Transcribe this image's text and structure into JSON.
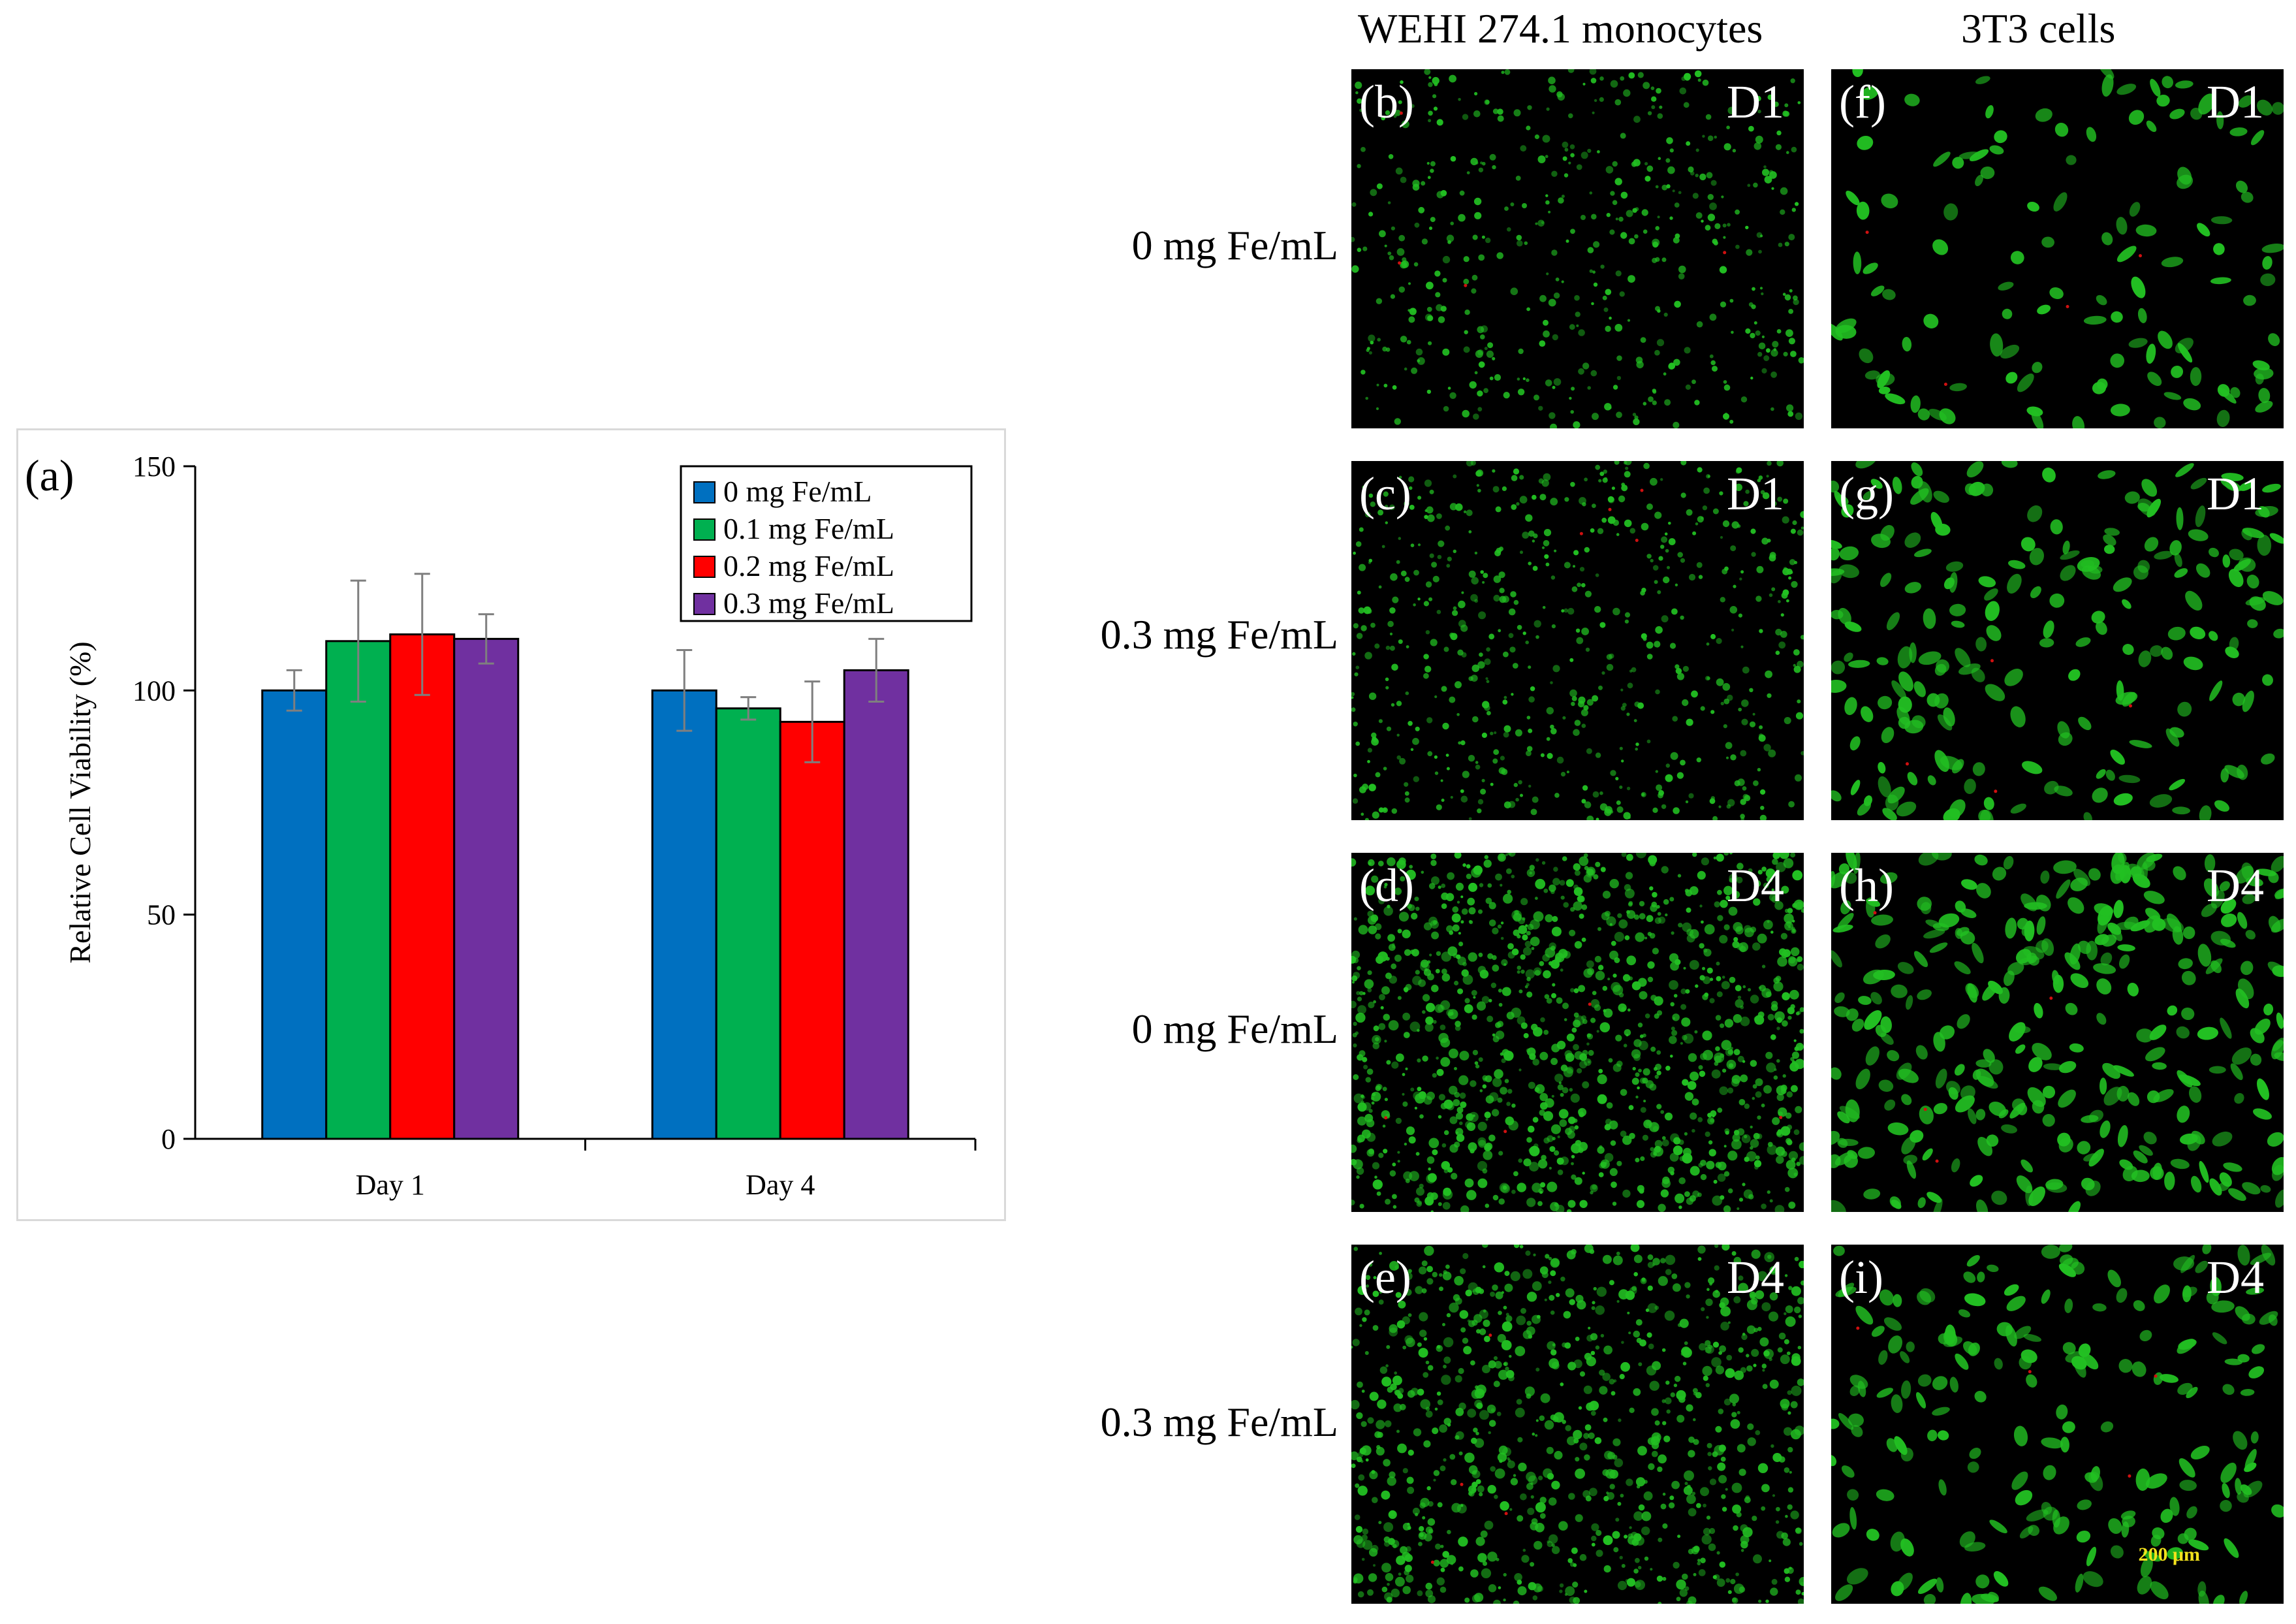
{
  "chart_data": {
    "type": "bar",
    "panel_label": "(a)",
    "categories": [
      "Day 1",
      "Day 4"
    ],
    "ylabel": "Relative Cell Viability (%)",
    "xlabel": "",
    "ylim": [
      0,
      150
    ],
    "yticks": [
      0,
      50,
      100,
      150
    ],
    "grid": false,
    "legend_position": "top-right",
    "series": [
      {
        "name": "0 mg Fe/mL",
        "color": "#0070c0",
        "values": [
          100,
          100
        ],
        "errors": [
          4.5,
          9
        ]
      },
      {
        "name": "0.1 mg Fe/mL",
        "color": "#00b050",
        "values": [
          111,
          96
        ],
        "errors": [
          13.5,
          2.5
        ]
      },
      {
        "name": "0.2 mg Fe/mL",
        "color": "#ff0000",
        "values": [
          112.5,
          93
        ],
        "errors": [
          13.5,
          9
        ]
      },
      {
        "name": "0.3 mg Fe/mL",
        "color": "#7030a0",
        "values": [
          111.5,
          104.5
        ],
        "errors": [
          5.5,
          7
        ]
      }
    ]
  },
  "micrographs": {
    "columns": [
      "WEHI 274.1 monocytes",
      "3T3 cells"
    ],
    "rows": [
      "0 mg Fe/mL",
      "0.3 mg Fe/mL",
      "0 mg Fe/mL",
      "0.3 mg Fe/mL"
    ],
    "panels": [
      {
        "label": "(b)",
        "day": "D1",
        "cell": "monocyte",
        "density": 0.28
      },
      {
        "label": "(f)",
        "day": "D1",
        "cell": "fibroblast",
        "density": 0.25
      },
      {
        "label": "(c)",
        "day": "D1",
        "cell": "monocyte",
        "density": 0.4
      },
      {
        "label": "(g)",
        "day": "D1",
        "cell": "fibroblast",
        "density": 0.6
      },
      {
        "label": "(d)",
        "day": "D4",
        "cell": "monocyte",
        "density": 1.0
      },
      {
        "label": "(h)",
        "day": "D4",
        "cell": "fibroblast",
        "density": 1.0
      },
      {
        "label": "(e)",
        "day": "D4",
        "cell": "monocyte",
        "density": 0.7
      },
      {
        "label": "(i)",
        "day": "D4",
        "cell": "fibroblast",
        "density": 0.55
      }
    ],
    "scale_bar": "200 μm",
    "fluorescence_colors": {
      "live": "#22c022",
      "dead": "#d01010"
    }
  }
}
